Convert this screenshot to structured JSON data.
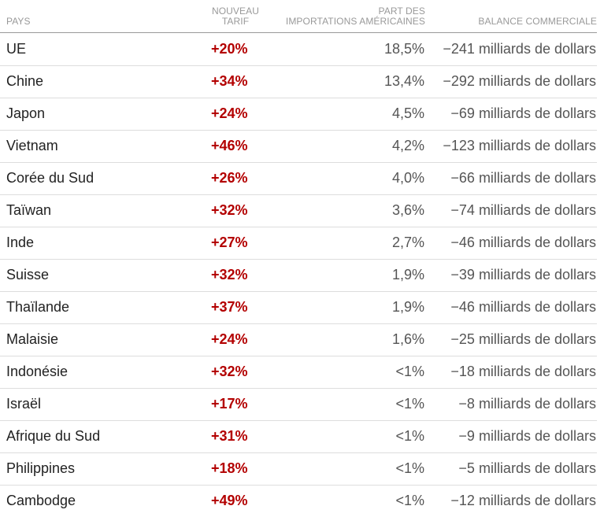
{
  "chart_data": {
    "type": "table",
    "columns": [
      "PAYS",
      "NOUVEAU TARIF",
      "PART DES IMPORTATIONS AMÉRICAINES",
      "BALANCE COMMERCIALE"
    ],
    "header": {
      "pays": "PAYS",
      "tarif_line1": "NOUVEAU",
      "tarif_line2": "TARIF",
      "part_line1": "PART DES",
      "part_line2": "IMPORTATIONS AMÉRICAINES",
      "balance": "BALANCE COMMERCIALE"
    },
    "rows": [
      {
        "pays": "UE",
        "tarif": "+20%",
        "part": "18,5%",
        "balance": "−241 milliards de dollars"
      },
      {
        "pays": "Chine",
        "tarif": "+34%",
        "part": "13,4%",
        "balance": "−292 milliards de dollars"
      },
      {
        "pays": "Japon",
        "tarif": "+24%",
        "part": "4,5%",
        "balance": "−69 milliards de dollars"
      },
      {
        "pays": "Vietnam",
        "tarif": "+46%",
        "part": "4,2%",
        "balance": "−123 milliards de dollars"
      },
      {
        "pays": "Corée du Sud",
        "tarif": "+26%",
        "part": "4,0%",
        "balance": "−66 milliards de dollars"
      },
      {
        "pays": "Taïwan",
        "tarif": "+32%",
        "part": "3,6%",
        "balance": "−74 milliards de dollars"
      },
      {
        "pays": "Inde",
        "tarif": "+27%",
        "part": "2,7%",
        "balance": "−46 milliards de dollars"
      },
      {
        "pays": "Suisse",
        "tarif": "+32%",
        "part": "1,9%",
        "balance": "−39 milliards de dollars"
      },
      {
        "pays": "Thaïlande",
        "tarif": "+37%",
        "part": "1,9%",
        "balance": "−46 milliards de dollars"
      },
      {
        "pays": "Malaisie",
        "tarif": "+24%",
        "part": "1,6%",
        "balance": "−25 milliards de dollars"
      },
      {
        "pays": "Indonésie",
        "tarif": "+32%",
        "part": "<1%",
        "balance": "−18 milliards de dollars"
      },
      {
        "pays": "Israël",
        "tarif": "+17%",
        "part": "<1%",
        "balance": "−8 milliards de dollars"
      },
      {
        "pays": "Afrique du Sud",
        "tarif": "+31%",
        "part": "<1%",
        "balance": "−9 milliards de dollars"
      },
      {
        "pays": "Philippines",
        "tarif": "+18%",
        "part": "<1%",
        "balance": "−5 milliards de dollars"
      },
      {
        "pays": "Cambodge",
        "tarif": "+49%",
        "part": "<1%",
        "balance": "−12 milliards de dollars"
      }
    ]
  },
  "colors": {
    "tarif_red": "#b30000",
    "header_gray": "#999999",
    "text_dark": "#222222",
    "text_mid": "#555555",
    "row_rule": "#dddddd"
  }
}
